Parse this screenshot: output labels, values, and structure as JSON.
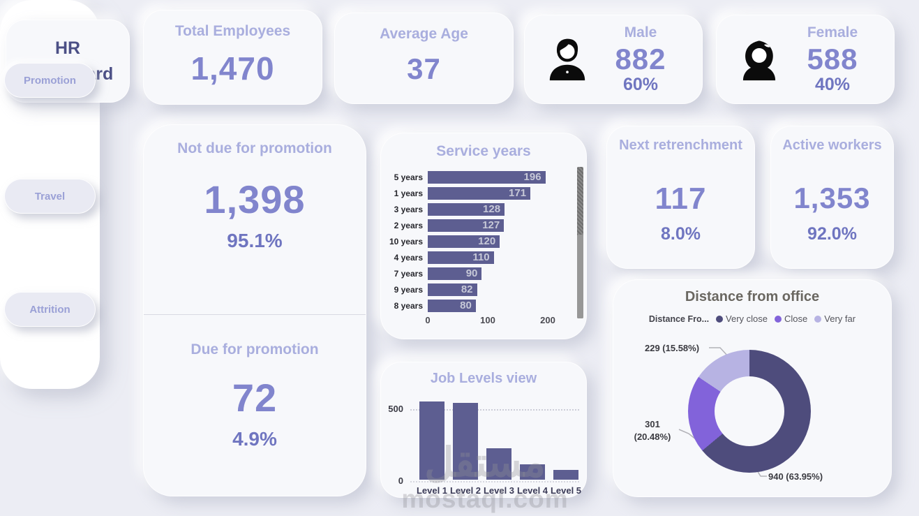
{
  "app": {
    "title_line1": "HR",
    "title_line2": "Dashboard"
  },
  "kpis": {
    "total_employees": {
      "label": "Total Employees",
      "value": "1,470"
    },
    "average_age": {
      "label": "Average Age",
      "value": "37"
    },
    "male": {
      "label": "Male",
      "value": "882",
      "percent": "60%"
    },
    "female": {
      "label": "Female",
      "value": "588",
      "percent": "40%"
    }
  },
  "sidebar": {
    "items": [
      {
        "label": "Promotion"
      },
      {
        "label": "Travel"
      },
      {
        "label": "Attrition"
      }
    ]
  },
  "promotion_panel": {
    "not_due": {
      "label": "Not due for promotion",
      "value": "1,398",
      "percent": "95.1%"
    },
    "due": {
      "label": "Due for promotion",
      "value": "72",
      "percent": "4.9%"
    }
  },
  "retrenchment": {
    "label": "Next retrenchment",
    "value": "117",
    "percent": "8.0%"
  },
  "active_workers": {
    "label": "Active workers",
    "value": "1,353",
    "percent": "92.0%"
  },
  "colors": {
    "accent": "#8185cd",
    "label_light": "#a9aede",
    "bar": "#5d5e91",
    "donut_very_close": "#4e4c7c",
    "donut_close": "#8263da",
    "donut_very_far": "#b7b3e3"
  },
  "chart_data": [
    {
      "type": "bar",
      "orientation": "horizontal",
      "title": "Service years",
      "categories": [
        "5 years",
        "1 years",
        "3 years",
        "2 years",
        "10 years",
        "4 years",
        "7 years",
        "9 years",
        "8 years"
      ],
      "values": [
        196,
        171,
        128,
        127,
        120,
        110,
        90,
        82,
        80
      ],
      "xlim": [
        0,
        200
      ],
      "x_ticks": [
        "0",
        "100",
        "200"
      ],
      "bar_color": "#5d5e91",
      "grid": false,
      "scrollbar": true
    },
    {
      "type": "bar",
      "orientation": "vertical",
      "title": "Job Levels view",
      "categories": [
        "Level 1",
        "Level 2",
        "Level 3",
        "Level 4",
        "Level 5"
      ],
      "values": [
        543,
        534,
        218,
        106,
        69
      ],
      "ylim": [
        0,
        560
      ],
      "y_ticks": [
        "500",
        "0"
      ],
      "bar_color": "#5d5e91",
      "grid": true
    },
    {
      "type": "pie",
      "title": "Distance from office",
      "legend_title": "Distance Fro...",
      "legend_position": "top",
      "slices": [
        {
          "label": "Very close",
          "value": 940,
          "pct": "63.95%",
          "callout": "940 (63.95%)",
          "color": "#4e4c7c"
        },
        {
          "label": "Close",
          "value": 301,
          "pct": "20.48%",
          "callout_line1": "301",
          "callout_line2": "(20.48%)",
          "color": "#8263da"
        },
        {
          "label": "Very far",
          "value": 229,
          "pct": "15.58%",
          "callout": "229 (15.58%)",
          "color": "#b7b3e3"
        }
      ]
    }
  ],
  "watermark": {
    "line1": "مستقل",
    "line2": "mostaql.com"
  }
}
